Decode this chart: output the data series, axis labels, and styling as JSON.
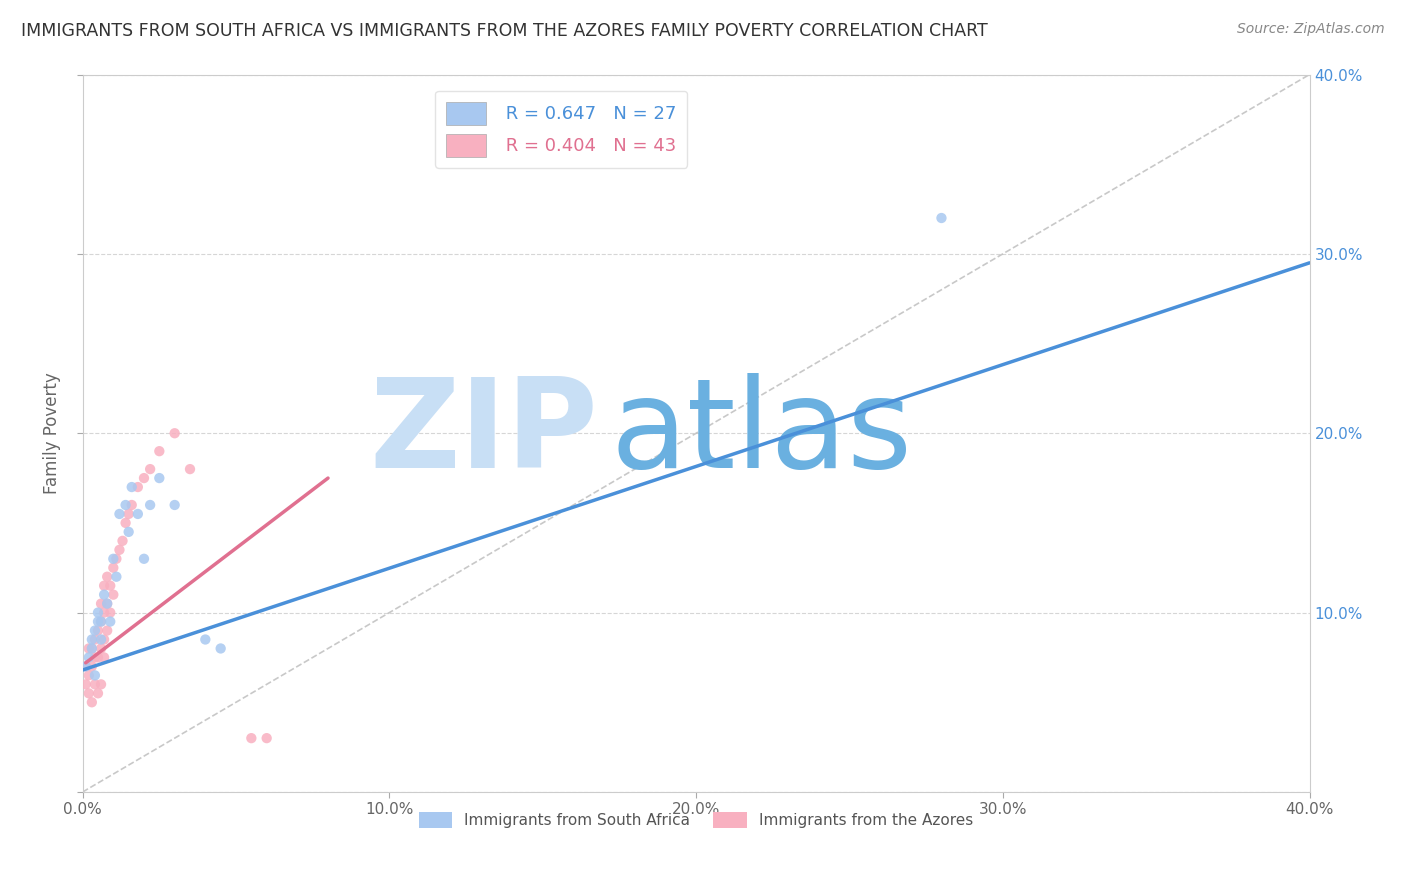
{
  "title": "IMMIGRANTS FROM SOUTH AFRICA VS IMMIGRANTS FROM THE AZORES FAMILY POVERTY CORRELATION CHART",
  "source": "Source: ZipAtlas.com",
  "ylabel": "Family Poverty",
  "xlim": [
    0.0,
    0.4
  ],
  "ylim": [
    0.0,
    0.4
  ],
  "xtick_vals": [
    0.0,
    0.1,
    0.2,
    0.3,
    0.4
  ],
  "xtick_labels": [
    "0.0%",
    "10.0%",
    "20.0%",
    "30.0%",
    "40.0%"
  ],
  "ytick_vals_right": [
    0.1,
    0.2,
    0.3,
    0.4
  ],
  "ytick_labels_right": [
    "10.0%",
    "20.0%",
    "30.0%",
    "40.0%"
  ],
  "legend_label1": "Immigrants from South Africa",
  "legend_label2": "Immigrants from the Azores",
  "r1": 0.647,
  "n1": 27,
  "r2": 0.404,
  "n2": 43,
  "color1": "#a8c8f0",
  "color2": "#f8b0c0",
  "color1_line": "#4a90d9",
  "color2_line": "#e07090",
  "watermark_zip": "ZIP",
  "watermark_atlas": "atlas",
  "watermark_color_zip": "#c8dff5",
  "watermark_color_atlas": "#6ab0e0",
  "sa_x": [
    0.001,
    0.002,
    0.003,
    0.003,
    0.004,
    0.004,
    0.005,
    0.005,
    0.006,
    0.006,
    0.007,
    0.008,
    0.009,
    0.01,
    0.011,
    0.012,
    0.014,
    0.015,
    0.016,
    0.018,
    0.02,
    0.022,
    0.025,
    0.03,
    0.04,
    0.045,
    0.28
  ],
  "sa_y": [
    0.07,
    0.075,
    0.08,
    0.085,
    0.065,
    0.09,
    0.095,
    0.1,
    0.085,
    0.095,
    0.11,
    0.105,
    0.095,
    0.13,
    0.12,
    0.155,
    0.16,
    0.145,
    0.17,
    0.155,
    0.13,
    0.16,
    0.175,
    0.16,
    0.085,
    0.08,
    0.32
  ],
  "az_x": [
    0.001,
    0.001,
    0.002,
    0.002,
    0.002,
    0.003,
    0.003,
    0.003,
    0.004,
    0.004,
    0.004,
    0.005,
    0.005,
    0.005,
    0.006,
    0.006,
    0.006,
    0.006,
    0.007,
    0.007,
    0.007,
    0.007,
    0.008,
    0.008,
    0.008,
    0.009,
    0.009,
    0.01,
    0.01,
    0.011,
    0.012,
    0.013,
    0.014,
    0.015,
    0.016,
    0.018,
    0.02,
    0.022,
    0.025,
    0.03,
    0.035,
    0.055,
    0.06
  ],
  "az_y": [
    0.06,
    0.07,
    0.055,
    0.065,
    0.08,
    0.05,
    0.07,
    0.08,
    0.06,
    0.075,
    0.085,
    0.055,
    0.075,
    0.09,
    0.06,
    0.08,
    0.095,
    0.105,
    0.075,
    0.085,
    0.1,
    0.115,
    0.09,
    0.105,
    0.12,
    0.1,
    0.115,
    0.11,
    0.125,
    0.13,
    0.135,
    0.14,
    0.15,
    0.155,
    0.16,
    0.17,
    0.175,
    0.18,
    0.19,
    0.2,
    0.18,
    0.03,
    0.03
  ],
  "sa_line_x": [
    0.0,
    0.4
  ],
  "sa_line_y": [
    0.068,
    0.295
  ],
  "az_line_x": [
    0.001,
    0.08
  ],
  "az_line_y": [
    0.072,
    0.175
  ]
}
